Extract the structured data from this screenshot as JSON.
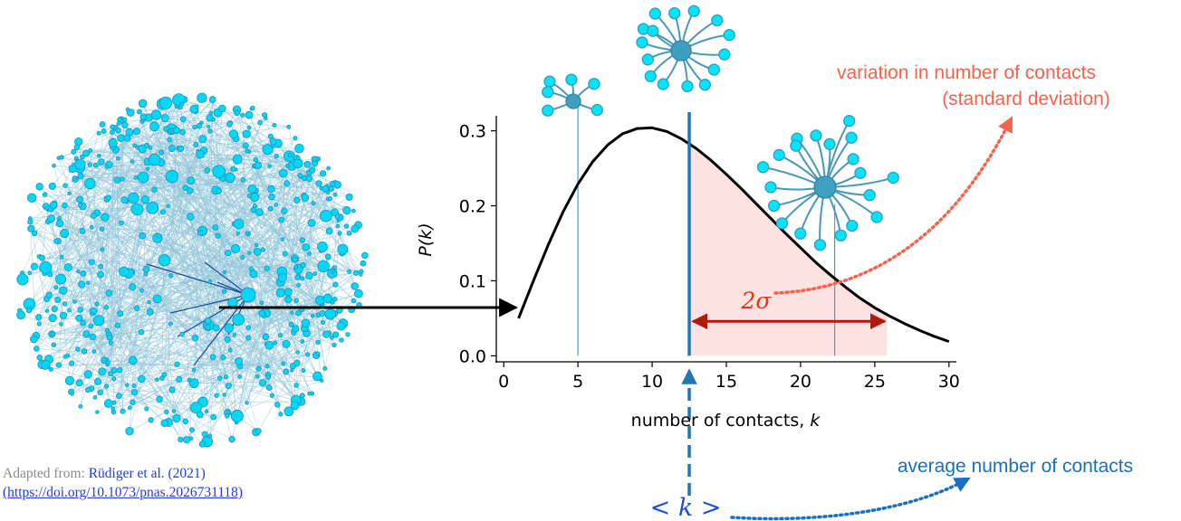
{
  "chart_data": {
    "type": "line",
    "title": "",
    "xlabel": "number of contacts, ",
    "xlabel_var": "k",
    "ylabel": "P(k)",
    "xlim": [
      -0.5,
      30.5
    ],
    "ylim": [
      -0.008,
      0.32
    ],
    "xticks": [
      0,
      5,
      10,
      15,
      20,
      25,
      30
    ],
    "xtick_labels": [
      "0",
      "5",
      "10",
      "15",
      "20",
      "25",
      "30"
    ],
    "yticks": [
      0.0,
      0.1,
      0.2,
      0.3
    ],
    "ytick_labels": [
      "0.0",
      "0.1",
      "0.2",
      "0.3"
    ],
    "grid": false,
    "series": [
      {
        "x": [
          1,
          2,
          3,
          4,
          5,
          6,
          7,
          8,
          9,
          10,
          11,
          12,
          13,
          14,
          15,
          16,
          17,
          18,
          19,
          20,
          21,
          22,
          23,
          24,
          25,
          26,
          27,
          28,
          29,
          30
        ],
        "values": [
          0.05,
          0.1,
          0.148,
          0.192,
          0.229,
          0.259,
          0.281,
          0.296,
          0.303,
          0.304,
          0.299,
          0.289,
          0.276,
          0.26,
          0.242,
          0.223,
          0.203,
          0.183,
          0.163,
          0.144,
          0.125,
          0.108,
          0.092,
          0.077,
          0.064,
          0.053,
          0.043,
          0.034,
          0.026,
          0.019
        ],
        "color": "#000000"
      }
    ],
    "mean_k": 12.5,
    "shaded_region": [
      12.5,
      25.8
    ],
    "sigma_arrow": [
      12.5,
      25.8
    ],
    "sigma_arrow_y": 0.046,
    "reference_lines": [
      5,
      12.5,
      22.3
    ],
    "colors": {
      "curve": "#000000",
      "shade": "#fde2e2",
      "mean_line": "#1f77b4",
      "sigma_arrow": "#b21a0a",
      "node_fill": "#00e5ff",
      "hub_fill": "#3e9fc0",
      "edge": "#4a98b8"
    }
  },
  "annotations": {
    "variation_line1": "variation in number of contacts",
    "variation_line2": "(standard deviation)",
    "sigma_label": "2σ",
    "average_label": "average number of contacts",
    "mean_label": "< k >"
  },
  "credit": {
    "prefix": "Adapted from: ",
    "citation": "Rüdiger et al. (2021)",
    "url": "(https://doi.org/10.1073/pnas.2026731118)"
  },
  "icons": {
    "network": "network-sphere-icon",
    "star_small": "star-network-small-icon",
    "star_medium": "star-network-medium-icon",
    "star_large": "star-network-large-icon"
  }
}
